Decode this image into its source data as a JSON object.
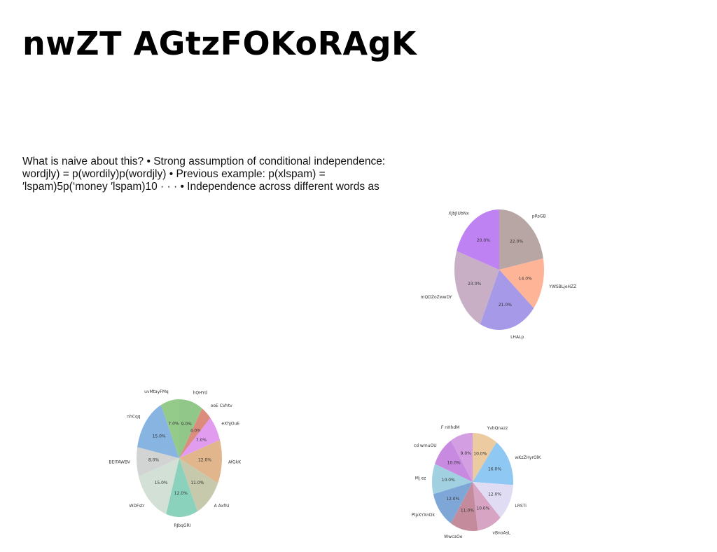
{
  "page": {
    "title": "nwZT AGtzFOKoRAgK",
    "body_lines": [
      "What is naive about this? • Strong assumption of conditional independence:",
      "wordjly) = p(wordily)p(wordjly) • Previous example: p(xlspam) =",
      "′lspam)5p(‘money ′lspam)10 · · · • Independence across different words as"
    ]
  },
  "chart_data": [
    {
      "type": "pie",
      "title": "",
      "categories": [
        "pRsGB",
        "YWSBLjeHZZ",
        "LHALp",
        "mQDZoZwwDY",
        "XJbJlUbNx"
      ],
      "values": [
        22.0,
        14.0,
        21.0,
        23.0,
        20.0
      ],
      "labels": [
        "22.0%",
        "14.0%",
        "21.0%",
        "23.0%",
        "20.0%"
      ],
      "colors": [
        "#b8a6a5",
        "#feb497",
        "#a599e8",
        "#c9afc6",
        "#bf82f3"
      ],
      "start": "top",
      "direction": "clockwise"
    },
    {
      "type": "pie",
      "title": "",
      "categories": [
        "hQHYd",
        "ooE CVhtv",
        "eXhJOuE",
        "AfGkK",
        "A AxfIU",
        "RJbqGRI",
        "WDFstr",
        "BEITAWBV",
        "nhCqq",
        "uvMtayFMq"
      ],
      "values": [
        9.0,
        4.0,
        7.0,
        12.0,
        11.0,
        12.0,
        15.0,
        8.0,
        15.0,
        7.0
      ],
      "labels": [
        "9.0%",
        "4.0%",
        "7.0%",
        "12.0%",
        "11.0%",
        "12.0%",
        "15.0%",
        "8.0%",
        "15.0%",
        "7.0%"
      ],
      "colors": [
        "#91c788",
        "#db8c7c",
        "#e19cf0",
        "#e1b68c",
        "#c7c9ad",
        "#8bd2bd",
        "#d2e0d6",
        "#d2d4d3",
        "#88b4e2",
        "#94cb8a"
      ],
      "start": "top",
      "direction": "clockwise"
    },
    {
      "type": "pie",
      "title": "",
      "categories": [
        "YvbQnazz",
        "wKzZHyrOlK",
        "LRSTi",
        "vBnoAsL",
        "WwcaOe",
        "PtpXYXnDk",
        "Mj ez",
        "cd wmuOU",
        "F nHhdM"
      ],
      "values": [
        10.0,
        16.0,
        12.0,
        10.0,
        11.0,
        12.0,
        10.0,
        10.0,
        9.0
      ],
      "labels": [
        "10.0%",
        "16.0%",
        "12.0%",
        "10.0%",
        "11.0%",
        "12.0%",
        "10.0%",
        "10.0%",
        "9.0%"
      ],
      "colors": [
        "#eccba0",
        "#90c8f4",
        "#e0dcf4",
        "#d7a4c4",
        "#c48b9c",
        "#7ea7d8",
        "#a1d1e0",
        "#c889e0",
        "#d39fe2"
      ],
      "start": "top",
      "direction": "clockwise"
    }
  ]
}
